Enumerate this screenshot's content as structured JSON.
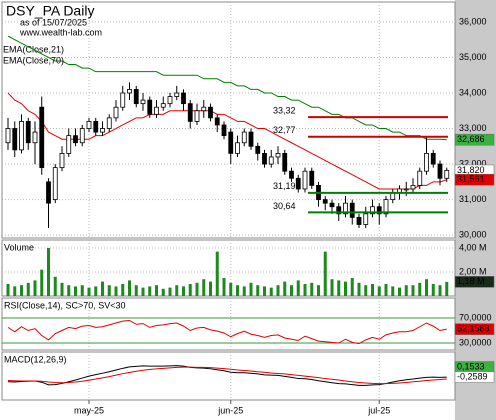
{
  "chart_data": [
    {
      "type": "candlestick",
      "title": "DSY_PA Daily",
      "subtitle": "as of 15/07/2025",
      "source": "www.wealth-lab.com",
      "open": [
        32.6,
        33.0,
        32.4,
        33.2,
        32.6,
        33.6,
        31.5,
        31.0,
        31.9,
        32.3,
        32.8,
        32.6,
        33.0,
        33.2,
        32.9,
        33.0,
        33.3,
        33.6,
        34.0,
        34.1,
        33.7,
        33.8,
        33.4,
        33.6,
        33.7,
        33.9,
        34.0,
        33.7,
        33.2,
        33.5,
        33.6,
        33.3,
        33.1,
        32.9,
        32.3,
        32.6,
        32.9,
        32.5,
        32.3,
        32.0,
        32.2,
        32.3,
        31.8,
        31.6,
        31.3,
        31.8,
        31.4,
        31.0,
        30.9,
        30.8,
        30.6,
        30.9,
        30.5,
        30.3,
        30.6,
        30.8,
        30.6,
        31.0,
        31.2,
        31.3,
        31.3,
        31.4,
        31.8,
        32.3,
        32.0,
        31.6
      ],
      "high": [
        33.3,
        33.2,
        33.4,
        33.3,
        33.2,
        33.9,
        31.6,
        32.0,
        32.5,
        33.0,
        33.0,
        33.1,
        33.3,
        33.3,
        33.2,
        33.4,
        33.8,
        34.2,
        34.3,
        34.2,
        34.0,
        33.9,
        33.8,
        33.9,
        34.0,
        34.2,
        34.1,
        33.8,
        33.7,
        33.8,
        33.7,
        33.4,
        33.2,
        33.0,
        32.8,
        33.0,
        33.0,
        32.6,
        32.4,
        32.4,
        32.5,
        32.4,
        31.9,
        31.7,
        31.9,
        31.9,
        31.5,
        31.1,
        31.0,
        30.9,
        31.1,
        31.0,
        30.6,
        30.8,
        31.0,
        30.9,
        31.1,
        31.3,
        31.4,
        31.5,
        31.6,
        31.9,
        32.75,
        32.4,
        32.1,
        31.9
      ],
      "low": [
        32.4,
        32.2,
        32.3,
        32.4,
        32.0,
        31.7,
        30.2,
        30.9,
        31.8,
        32.2,
        32.5,
        32.5,
        32.9,
        32.8,
        32.8,
        32.9,
        33.2,
        33.5,
        33.8,
        33.6,
        33.5,
        33.3,
        33.3,
        33.5,
        33.6,
        33.8,
        33.5,
        33.0,
        33.1,
        33.3,
        33.2,
        32.9,
        32.7,
        32.0,
        32.2,
        32.5,
        32.4,
        32.1,
        31.9,
        31.9,
        32.0,
        31.7,
        31.5,
        31.2,
        31.2,
        31.3,
        30.8,
        30.7,
        30.6,
        30.4,
        30.5,
        30.3,
        30.2,
        30.2,
        30.5,
        30.3,
        30.5,
        30.9,
        31.0,
        31.1,
        31.2,
        31.3,
        31.7,
        31.9,
        31.4,
        31.5
      ],
      "close": [
        33.0,
        32.4,
        33.2,
        32.6,
        32.9,
        31.9,
        30.9,
        31.9,
        32.3,
        32.8,
        32.6,
        33.0,
        33.2,
        32.9,
        33.0,
        33.3,
        33.6,
        34.0,
        34.1,
        33.7,
        33.8,
        33.4,
        33.6,
        33.7,
        33.9,
        34.0,
        33.7,
        33.2,
        33.5,
        33.6,
        33.3,
        33.1,
        32.8,
        32.3,
        32.6,
        32.9,
        32.5,
        32.3,
        32.0,
        32.2,
        32.3,
        31.8,
        31.6,
        31.3,
        31.8,
        31.4,
        31.0,
        30.9,
        30.8,
        30.6,
        30.9,
        30.5,
        30.3,
        30.6,
        30.8,
        30.6,
        31.0,
        31.2,
        31.3,
        31.3,
        31.4,
        31.8,
        32.3,
        32.0,
        31.6,
        31.82
      ],
      "series": [
        {
          "name": "EMA(Close,21)",
          "color": "#e00000",
          "values": [
            34.0,
            33.8,
            33.7,
            33.5,
            33.4,
            33.2,
            32.9,
            32.8,
            32.7,
            32.7,
            32.7,
            32.7,
            32.7,
            32.8,
            32.8,
            32.9,
            33.0,
            33.1,
            33.2,
            33.3,
            33.3,
            33.4,
            33.4,
            33.4,
            33.5,
            33.5,
            33.5,
            33.5,
            33.5,
            33.5,
            33.5,
            33.4,
            33.4,
            33.3,
            33.2,
            33.2,
            33.1,
            33.0,
            33.0,
            32.9,
            32.8,
            32.7,
            32.6,
            32.5,
            32.4,
            32.3,
            32.2,
            32.1,
            32.0,
            31.9,
            31.8,
            31.7,
            31.6,
            31.5,
            31.4,
            31.3,
            31.3,
            31.3,
            31.3,
            31.3,
            31.3,
            31.4,
            31.4,
            31.5,
            31.5,
            31.561
          ]
        },
        {
          "name": "EMA(Close,70)",
          "color": "#008000",
          "values": [
            35.6,
            35.5,
            35.4,
            35.3,
            35.2,
            35.1,
            35.0,
            34.9,
            34.9,
            34.8,
            34.8,
            34.7,
            34.7,
            34.6,
            34.6,
            34.6,
            34.6,
            34.6,
            34.6,
            34.6,
            34.6,
            34.6,
            34.6,
            34.5,
            34.5,
            34.5,
            34.5,
            34.5,
            34.5,
            34.4,
            34.4,
            34.4,
            34.3,
            34.3,
            34.2,
            34.2,
            34.1,
            34.1,
            34.0,
            34.0,
            33.9,
            33.9,
            33.8,
            33.8,
            33.7,
            33.6,
            33.6,
            33.5,
            33.4,
            33.4,
            33.3,
            33.3,
            33.2,
            33.1,
            33.1,
            33.0,
            33.0,
            32.9,
            32.9,
            32.8,
            32.8,
            32.8,
            32.7,
            32.7,
            32.7,
            32.686
          ]
        }
      ],
      "levels": [
        {
          "value": 33.32,
          "label": "33,32",
          "color": "#d00000"
        },
        {
          "value": 32.77,
          "label": "32,77",
          "color": "#d00000"
        },
        {
          "value": 31.19,
          "label": "31,19",
          "color": "#008000"
        },
        {
          "value": 30.64,
          "label": "30,64",
          "color": "#008000"
        }
      ],
      "markers": [
        {
          "value": 32.686,
          "label": "32,686",
          "color": "#3cb043"
        },
        {
          "value": 31.82,
          "label": "31,820",
          "color": "#ffffff"
        },
        {
          "value": 31.561,
          "label": "31,561",
          "color": "#e00000"
        }
      ],
      "ylim": [
        29.92,
        36.56
      ],
      "yticks": [
        {
          "value": 30,
          "label": "30,000"
        },
        {
          "value": 31,
          "label": "31,000"
        },
        {
          "value": 32,
          "label": "32,000"
        },
        {
          "value": 33,
          "label": "33,000"
        },
        {
          "value": 34,
          "label": "34,000"
        },
        {
          "value": 35,
          "label": "35,000"
        },
        {
          "value": 36,
          "label": "36,000"
        }
      ],
      "xticks": [
        {
          "value": 12,
          "label": "may-25"
        },
        {
          "value": 33,
          "label": "jun-25"
        },
        {
          "value": 55,
          "label": "jul-25"
        }
      ],
      "grid": true
    },
    {
      "type": "bar",
      "title": "Volume",
      "color": "#1d8a1d",
      "values": [
        1.0,
        0.8,
        0.9,
        1.1,
        1.3,
        2.2,
        4.0,
        1.6,
        1.1,
        0.9,
        0.8,
        0.9,
        0.7,
        0.8,
        1.2,
        0.9,
        0.8,
        1.0,
        1.3,
        0.9,
        0.7,
        0.8,
        0.9,
        0.6,
        0.7,
        0.9,
        0.8,
        1.0,
        1.1,
        1.4,
        1.2,
        3.7,
        1.5,
        1.1,
        0.9,
        0.8,
        1.1,
        0.9,
        0.8,
        0.7,
        0.9,
        1.2,
        0.9,
        1.3,
        1.0,
        1.1,
        0.9,
        3.7,
        1.4,
        1.3,
        1.2,
        1.5,
        1.1,
        0.9,
        1.0,
        0.8,
        1.0,
        0.8,
        0.7,
        0.9,
        0.9,
        1.1,
        1.4,
        1.0,
        0.9,
        1.18
      ],
      "ylim": [
        0,
        4.67
      ],
      "yticks": [
        {
          "value": 2,
          "label": "2,00 M"
        },
        {
          "value": 4,
          "label": "4,00 M"
        }
      ],
      "markers": [
        {
          "value": 1.18,
          "label": "1,18 M",
          "color": "#1a2a1a"
        }
      ]
    },
    {
      "type": "line",
      "title": "RSI(Close,14), SC>70, SV<30",
      "series": [
        {
          "color": "#e00000",
          "values": [
            55,
            48,
            56,
            50,
            53,
            42,
            35,
            45,
            50,
            55,
            53,
            57,
            58,
            55,
            56,
            59,
            62,
            65,
            66,
            60,
            61,
            55,
            58,
            59,
            61,
            62,
            57,
            50,
            54,
            55,
            51,
            49,
            46,
            40,
            45,
            49,
            44,
            42,
            39,
            42,
            43,
            38,
            36,
            34,
            41,
            37,
            33,
            32,
            31,
            30,
            36,
            31,
            29,
            35,
            39,
            36,
            43,
            46,
            48,
            48,
            50,
            56,
            62,
            57,
            50,
            52.1588
          ]
        }
      ],
      "ylim": [
        18.8,
        102
      ],
      "yticks": [
        {
          "value": 30,
          "label": "30,0000"
        },
        {
          "value": 70,
          "label": "70,0000"
        }
      ],
      "markers": [
        {
          "value": 52.1588,
          "label": "52,1588",
          "color": "#e00000"
        }
      ]
    },
    {
      "type": "line",
      "title": "MACD(12,26,9)",
      "series": [
        {
          "color": "#000000",
          "values": [
            -0.45,
            -0.46,
            -0.44,
            -0.43,
            -0.42,
            -0.47,
            -0.58,
            -0.57,
            -0.52,
            -0.45,
            -0.38,
            -0.3,
            -0.22,
            -0.16,
            -0.1,
            -0.04,
            0.03,
            0.1,
            0.16,
            0.18,
            0.2,
            0.19,
            0.19,
            0.19,
            0.2,
            0.21,
            0.19,
            0.14,
            0.12,
            0.11,
            0.08,
            0.04,
            0.0,
            -0.06,
            -0.08,
            -0.08,
            -0.1,
            -0.13,
            -0.17,
            -0.18,
            -0.19,
            -0.23,
            -0.27,
            -0.32,
            -0.33,
            -0.36,
            -0.41,
            -0.45,
            -0.49,
            -0.53,
            -0.54,
            -0.57,
            -0.6,
            -0.6,
            -0.58,
            -0.57,
            -0.52,
            -0.46,
            -0.41,
            -0.37,
            -0.34,
            -0.3,
            -0.27,
            -0.26,
            -0.27,
            -0.2589
          ]
        },
        {
          "color": "#e00000",
          "values": [
            -0.4,
            -0.41,
            -0.42,
            -0.42,
            -0.42,
            -0.43,
            -0.46,
            -0.48,
            -0.49,
            -0.48,
            -0.46,
            -0.43,
            -0.39,
            -0.34,
            -0.29,
            -0.24,
            -0.18,
            -0.12,
            -0.07,
            -0.02,
            0.02,
            0.05,
            0.08,
            0.1,
            0.12,
            0.14,
            0.15,
            0.15,
            0.14,
            0.14,
            0.13,
            0.11,
            0.09,
            0.06,
            0.03,
            0.01,
            -0.01,
            -0.04,
            -0.06,
            -0.09,
            -0.11,
            -0.13,
            -0.16,
            -0.19,
            -0.22,
            -0.25,
            -0.28,
            -0.32,
            -0.35,
            -0.38,
            -0.42,
            -0.45,
            -0.48,
            -0.5,
            -0.52,
            -0.53,
            -0.53,
            -0.52,
            -0.5,
            -0.48,
            -0.45,
            -0.43,
            -0.4,
            -0.38,
            -0.36,
            -0.34
          ]
        }
      ],
      "ylim": [
        -1.2,
        0.77
      ],
      "markers": [
        {
          "value": 0.1533,
          "label": "0,1533",
          "color": "#3cb043"
        },
        {
          "value": -0.2589,
          "label": "-0,2589",
          "color": "#ffffff"
        }
      ]
    }
  ]
}
